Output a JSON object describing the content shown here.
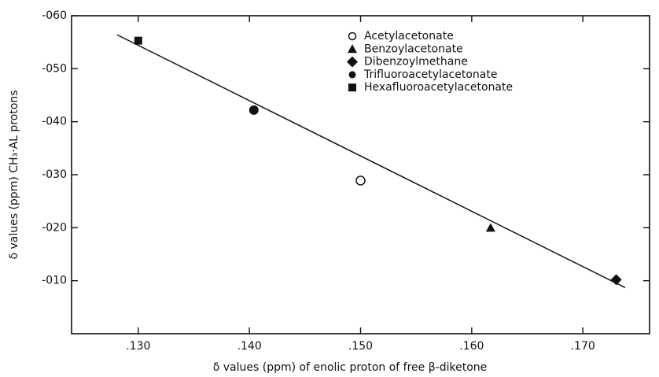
{
  "chart_data": {
    "type": "scatter",
    "xlabel": "δ values (ppm) of enolic proton of free β-diketone",
    "ylabel": "δ values (ppm) CH₃·AL protons",
    "xlim": [
      0.124,
      0.176
    ],
    "ylim": [
      0,
      0.06
    ],
    "xticks": [
      {
        "value": 0.13,
        "label": ".130"
      },
      {
        "value": 0.14,
        "label": ".140"
      },
      {
        "value": 0.15,
        "label": ".150"
      },
      {
        "value": 0.16,
        "label": ".160"
      },
      {
        "value": 0.17,
        "label": ".170"
      }
    ],
    "yticks": [
      {
        "value": 0.01,
        "label": "-010"
      },
      {
        "value": 0.02,
        "label": "-020"
      },
      {
        "value": 0.03,
        "label": "-030"
      },
      {
        "value": 0.04,
        "label": "-040"
      },
      {
        "value": 0.05,
        "label": "-050"
      },
      {
        "value": 0.06,
        "label": "-060"
      }
    ],
    "legend": "upper right",
    "color": "#111111",
    "series": [
      {
        "name": "Acetylacetonate",
        "marker": "open-circle",
        "x": [
          0.15
        ],
        "values": [
          0.0289
        ]
      },
      {
        "name": "Benzoylacetonate",
        "marker": "triangle",
        "x": [
          0.1617
        ],
        "values": [
          0.02
        ]
      },
      {
        "name": "Dibenzoylmethane",
        "marker": "diamond",
        "x": [
          0.173
        ],
        "values": [
          0.0102
        ]
      },
      {
        "name": "Trifluoroacetylacetonate",
        "marker": "circle",
        "x": [
          0.1404
        ],
        "values": [
          0.0422
        ]
      },
      {
        "name": "Hexafluoroacetylacetonate",
        "marker": "square",
        "x": [
          0.13
        ],
        "values": [
          0.0553
        ]
      }
    ],
    "line": {
      "x": [
        0.1281,
        0.1738
      ],
      "values": [
        0.0564,
        0.0087
      ]
    }
  }
}
